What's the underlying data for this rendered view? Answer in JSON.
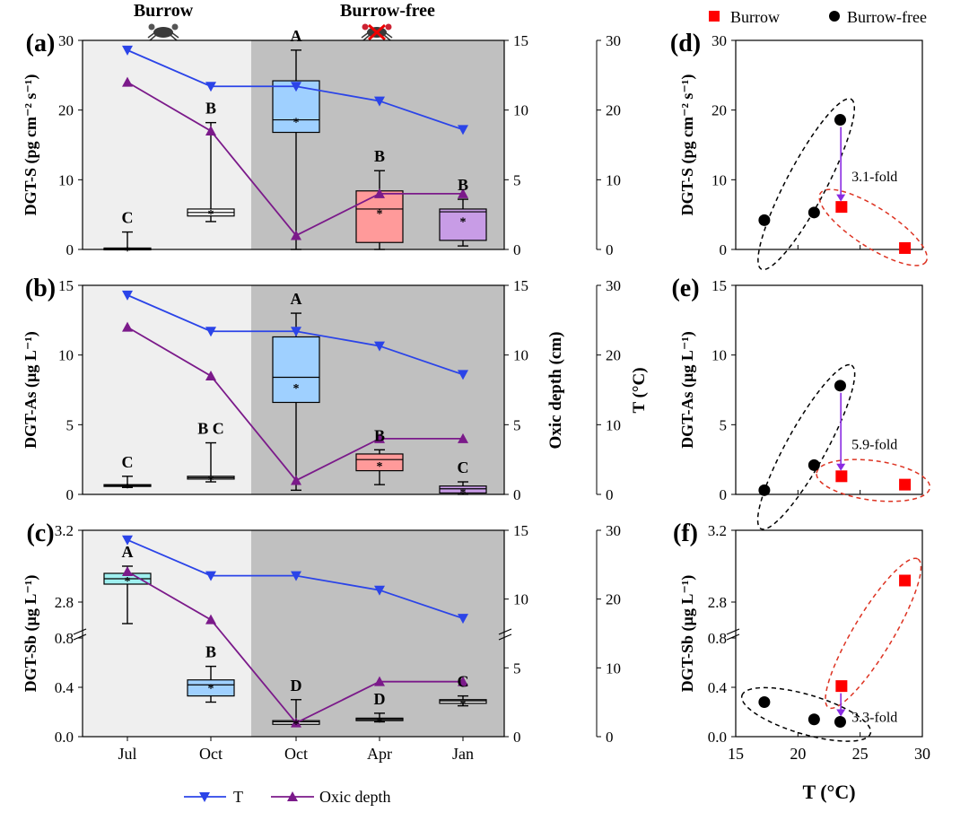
{
  "groups": {
    "burrow": "Burrow",
    "burrow_free": "Burrow-free"
  },
  "categories": [
    "Jul",
    "Oct",
    "Oct",
    "Apr",
    "Jan"
  ],
  "legend_bottom": {
    "t": "T",
    "oxic": "Oxic depth"
  },
  "legend_top": {
    "burrow": "Burrow",
    "burrow_free": "Burrow-free"
  },
  "colors": {
    "t_line": "#2b44e8",
    "oxic_line": "#7b1a8a",
    "burrow_marker": "#ff0000",
    "burrow_free_marker": "#000000",
    "fold_arrow": "#8a2be2",
    "burrow_bg": "#efefef",
    "burrow_free_bg": "#c0c0c0"
  },
  "shared_series": {
    "t_celsius": [
      28.6,
      23.4,
      23.4,
      21.3,
      17.2
    ],
    "oxic_depth_cm": [
      12,
      8.5,
      1,
      4,
      4
    ]
  },
  "right_axes": {
    "oxic_label": "Oxic depth (cm)",
    "t_label": "T (°C)"
  },
  "chart_data": [
    {
      "panel": "(a)",
      "type": "box",
      "ylabel": "DGT-S (pg cm⁻² s⁻¹)",
      "ylim": [
        0,
        30
      ],
      "yticks": [
        "0",
        "10",
        "20",
        "30"
      ],
      "oxic_ticks": [
        "0",
        "5",
        "10",
        "15"
      ],
      "t_ticks": [
        "0",
        "10",
        "20",
        "30"
      ],
      "boxes": [
        {
          "category": "Jul",
          "min": 0,
          "q1": 0,
          "median": 0.1,
          "q3": 0.2,
          "max": 2.5,
          "mean": 0.1,
          "letter": "C",
          "color": "#ffffff"
        },
        {
          "category": "Oct",
          "min": 4,
          "q1": 4.8,
          "median": 5.3,
          "q3": 5.8,
          "max": 18.2,
          "mean": 5.4,
          "letter": "B",
          "color": "#ffffff"
        },
        {
          "category": "Oct",
          "min": 0,
          "q1": 16.8,
          "median": 18.6,
          "q3": 24.2,
          "max": 28.6,
          "mean": 18.6,
          "letter": "A",
          "color": "#9fd0ff"
        },
        {
          "category": "Apr",
          "min": 0,
          "q1": 1,
          "median": 5.8,
          "q3": 8.4,
          "max": 11.3,
          "mean": 5.5,
          "letter": "B",
          "color": "#ff9a9a"
        },
        {
          "category": "Jan",
          "min": 0.5,
          "q1": 1.3,
          "median": 5.4,
          "q3": 5.8,
          "max": 7.2,
          "mean": 4.3,
          "letter": "B",
          "color": "#c89ce6"
        }
      ]
    },
    {
      "panel": "(b)",
      "type": "box",
      "ylabel": "DGT-As (µg L⁻¹)",
      "ylim": [
        0,
        15
      ],
      "yticks": [
        "0",
        "5",
        "10",
        "15"
      ],
      "oxic_ticks": [
        "0",
        "5",
        "10",
        "15"
      ],
      "t_ticks": [
        "0",
        "10",
        "20",
        "30"
      ],
      "boxes": [
        {
          "category": "Jul",
          "min": 0.5,
          "q1": 0.6,
          "median": 0.65,
          "q3": 0.7,
          "max": 1.3,
          "mean": 0.65,
          "letter": "C",
          "color": "#ffffff"
        },
        {
          "category": "Oct",
          "min": 0.9,
          "q1": 1.1,
          "median": 1.2,
          "q3": 1.3,
          "max": 3.7,
          "mean": 1.2,
          "letter": "B C",
          "color": "#ffffff"
        },
        {
          "category": "Oct",
          "min": 0.3,
          "q1": 6.6,
          "median": 8.4,
          "q3": 11.3,
          "max": 13,
          "mean": 7.8,
          "letter": "A",
          "color": "#9fd0ff"
        },
        {
          "category": "Apr",
          "min": 0.7,
          "q1": 1.7,
          "median": 2.5,
          "q3": 2.9,
          "max": 3.2,
          "mean": 2.2,
          "letter": "B",
          "color": "#ff9a9a"
        },
        {
          "category": "Jan",
          "min": 0,
          "q1": 0.1,
          "median": 0.4,
          "q3": 0.6,
          "max": 0.9,
          "mean": 0.3,
          "letter": "C",
          "color": "#c89ce6"
        }
      ]
    },
    {
      "panel": "(c)",
      "type": "box",
      "ylabel": "DGT-Sb (µg L⁻¹)",
      "ylim_lower": [
        0,
        0.8
      ],
      "ylim_upper": [
        2.6,
        3.2
      ],
      "yticks": [
        "0.0",
        "0.4",
        "0.8",
        "2.8",
        "3.2"
      ],
      "oxic_ticks": [
        "0",
        "5",
        "10",
        "15"
      ],
      "t_ticks": [
        "0",
        "10",
        "20",
        "30"
      ],
      "boxes": [
        {
          "category": "Jul",
          "min": 2.68,
          "q1": 2.9,
          "median": 2.93,
          "q3": 2.96,
          "max": 3.0,
          "mean": 2.93,
          "letter": "A",
          "color": "#9ff0f0"
        },
        {
          "category": "Oct",
          "min": 0.28,
          "q1": 0.33,
          "median": 0.42,
          "q3": 0.46,
          "max": 0.57,
          "mean": 0.41,
          "letter": "B",
          "color": "#9fd0ff"
        },
        {
          "category": "Oct",
          "min": 0.1,
          "q1": 0.1,
          "median": 0.12,
          "q3": 0.13,
          "max": 0.3,
          "mean": 0.12,
          "letter": "D",
          "color": "#ffffff"
        },
        {
          "category": "Apr",
          "min": 0.12,
          "q1": 0.13,
          "median": 0.14,
          "q3": 0.15,
          "max": 0.19,
          "mean": 0.14,
          "letter": "D",
          "color": "#ffffff"
        },
        {
          "category": "Jan",
          "min": 0.25,
          "q1": 0.27,
          "median": 0.29,
          "q3": 0.3,
          "max": 0.33,
          "mean": 0.28,
          "letter": "C",
          "color": "#ffffff"
        }
      ]
    },
    {
      "panel": "(d)",
      "type": "scatter",
      "xlim": [
        15,
        30
      ],
      "ylim": [
        0,
        30
      ],
      "yticks": [
        "0",
        "10",
        "20",
        "30"
      ],
      "ylabel": "DGT-S (pg cm⁻² s⁻¹)",
      "burrow": [
        {
          "x": 28.6,
          "y": 0.2
        },
        {
          "x": 23.5,
          "y": 6.1
        }
      ],
      "burrow_free": [
        {
          "x": 17.3,
          "y": 4.2
        },
        {
          "x": 21.3,
          "y": 5.3
        },
        {
          "x": 23.4,
          "y": 18.6
        }
      ],
      "fold": "3.1-fold"
    },
    {
      "panel": "(e)",
      "type": "scatter",
      "xlim": [
        15,
        30
      ],
      "ylim": [
        0,
        15
      ],
      "yticks": [
        "0",
        "5",
        "10",
        "15"
      ],
      "ylabel": "DGT-As (µg L⁻¹)",
      "burrow": [
        {
          "x": 28.6,
          "y": 0.7
        },
        {
          "x": 23.5,
          "y": 1.3
        }
      ],
      "burrow_free": [
        {
          "x": 17.3,
          "y": 0.3
        },
        {
          "x": 21.3,
          "y": 2.1
        },
        {
          "x": 23.4,
          "y": 7.8
        }
      ],
      "fold": "5.9-fold"
    },
    {
      "panel": "(f)",
      "type": "scatter",
      "xlim": [
        15,
        30
      ],
      "ylim_lower": [
        0,
        0.8
      ],
      "ylim_upper": [
        2.6,
        3.2
      ],
      "yticks": [
        "0.0",
        "0.4",
        "0.8",
        "2.8",
        "3.2"
      ],
      "ylabel": "DGT-Sb (µg L⁻¹)",
      "xlabel": "T (°C)",
      "xticks": [
        "15",
        "20",
        "25",
        "30"
      ],
      "burrow": [
        {
          "x": 28.6,
          "y": 2.92
        },
        {
          "x": 23.5,
          "y": 0.41
        }
      ],
      "burrow_free": [
        {
          "x": 17.3,
          "y": 0.28
        },
        {
          "x": 21.3,
          "y": 0.14
        },
        {
          "x": 23.4,
          "y": 0.12
        }
      ],
      "fold": "3.3-fold"
    }
  ]
}
